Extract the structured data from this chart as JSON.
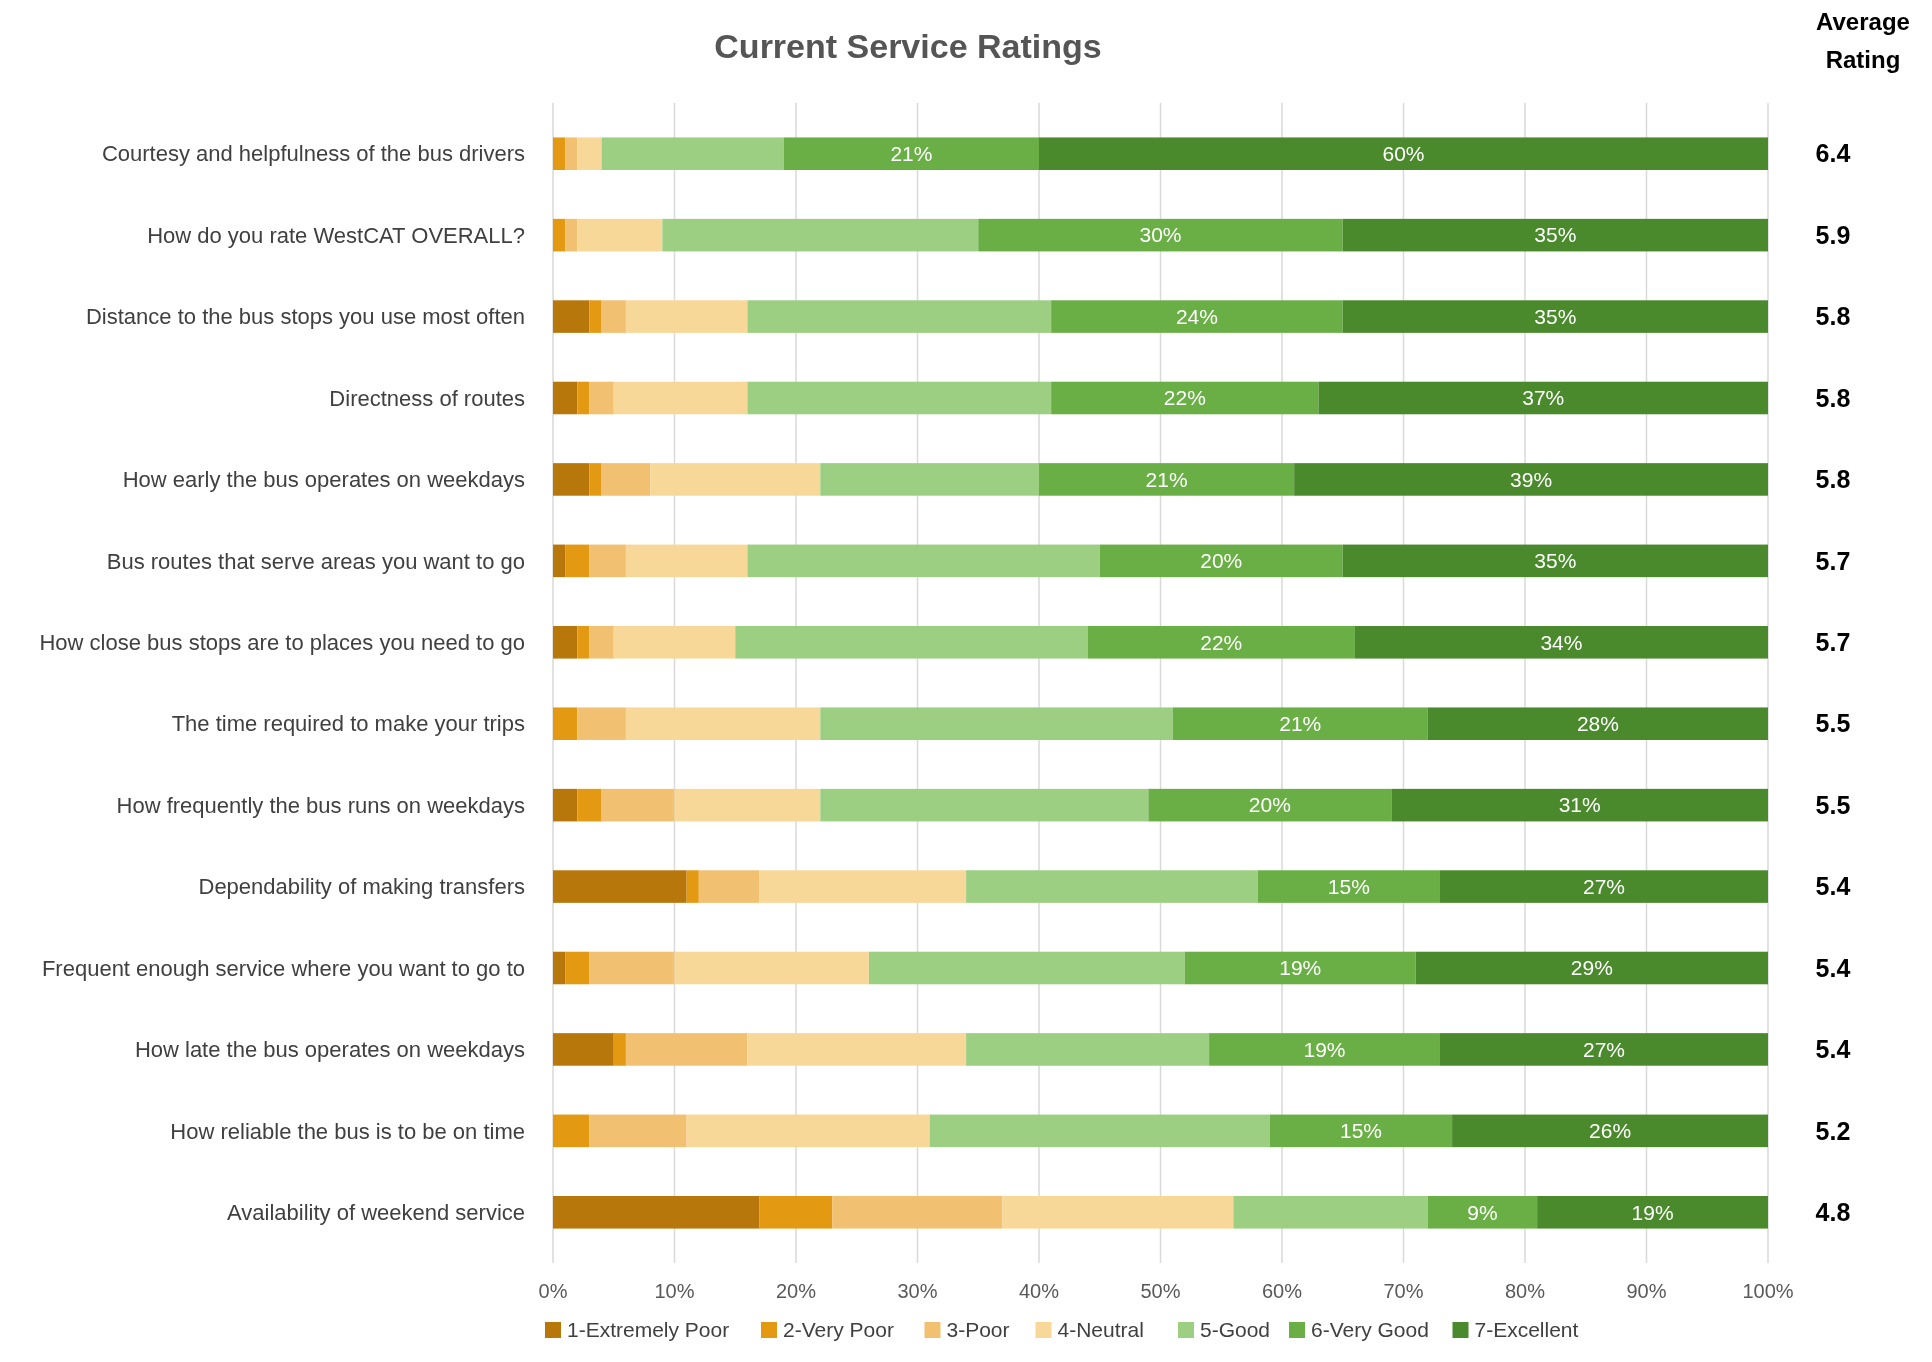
{
  "chart_data": {
    "type": "bar",
    "orientation": "horizontal",
    "stacked": true,
    "title": "Current Service Ratings",
    "categories": [
      "Courtesy and helpfulness of the bus drivers",
      "How do you rate WestCAT OVERALL?",
      "Distance to the bus stops you use most often",
      "Directness of routes",
      "How early the bus operates on weekdays",
      "Bus routes that serve areas you want to go",
      "How close bus stops are to places you need to go",
      "The time required to make your trips",
      "How frequently the bus runs on weekdays",
      "Dependability of making transfers",
      "Frequent enough service where you want to go to",
      "How late the bus operates on weekdays",
      "How reliable the bus is to be on time",
      "Availability of weekend service"
    ],
    "series": [
      {
        "name": "1-Extremely Poor",
        "color": "#b8770a",
        "values": [
          0,
          0,
          3,
          2,
          3,
          1,
          2,
          0,
          2,
          11,
          1,
          5,
          0,
          17
        ]
      },
      {
        "name": "2-Very Poor",
        "color": "#e39a12",
        "values": [
          1,
          1,
          1,
          1,
          1,
          2,
          1,
          2,
          2,
          1,
          2,
          1,
          3,
          6
        ]
      },
      {
        "name": "3-Poor",
        "color": "#f2c071",
        "values": [
          1,
          1,
          2,
          2,
          4,
          3,
          2,
          4,
          6,
          5,
          7,
          10,
          8,
          14
        ]
      },
      {
        "name": "4-Neutral",
        "color": "#f8d898",
        "values": [
          2,
          7,
          10,
          11,
          14,
          10,
          10,
          16,
          12,
          17,
          16,
          18,
          20,
          19
        ]
      },
      {
        "name": "5-Good",
        "color": "#9ccf82",
        "values": [
          15,
          26,
          25,
          25,
          18,
          29,
          29,
          29,
          27,
          24,
          26,
          20,
          28,
          16
        ]
      },
      {
        "name": "6-Very Good",
        "color": "#6aaf45",
        "values": [
          21,
          30,
          24,
          22,
          21,
          20,
          22,
          21,
          20,
          15,
          19,
          19,
          15,
          9
        ],
        "value_labels": [
          "21%",
          "30%",
          "24%",
          "22%",
          "21%",
          "20%",
          "22%",
          "21%",
          "20%",
          "15%",
          "19%",
          "19%",
          "15%",
          "9%"
        ]
      },
      {
        "name": "7-Excellent",
        "color": "#4a8a2c",
        "values": [
          60,
          35,
          35,
          37,
          39,
          35,
          34,
          28,
          31,
          27,
          29,
          27,
          26,
          19
        ],
        "value_labels": [
          "60%",
          "35%",
          "35%",
          "37%",
          "39%",
          "35%",
          "34%",
          "28%",
          "31%",
          "27%",
          "29%",
          "27%",
          "26%",
          "19%"
        ]
      }
    ],
    "xlim": [
      0,
      100
    ],
    "xticks": [
      {
        "value": 0,
        "label": "0%"
      },
      {
        "value": 10,
        "label": "10%"
      },
      {
        "value": 20,
        "label": "20%"
      },
      {
        "value": 30,
        "label": "30%"
      },
      {
        "value": 40,
        "label": "40%"
      },
      {
        "value": 50,
        "label": "50%"
      },
      {
        "value": 60,
        "label": "60%"
      },
      {
        "value": 70,
        "label": "70%"
      },
      {
        "value": 80,
        "label": "80%"
      },
      {
        "value": 90,
        "label": "90%"
      },
      {
        "value": 100,
        "label": "100%"
      }
    ],
    "grid": "x",
    "legend": "bottom",
    "annotations": [
      "Average Rating",
      "6.4",
      "5.9",
      "5.8",
      "5.8",
      "5.8",
      "5.7",
      "5.7",
      "5.5",
      "5.5",
      "5.4",
      "5.4",
      "5.4",
      "5.2",
      "4.8"
    ]
  }
}
